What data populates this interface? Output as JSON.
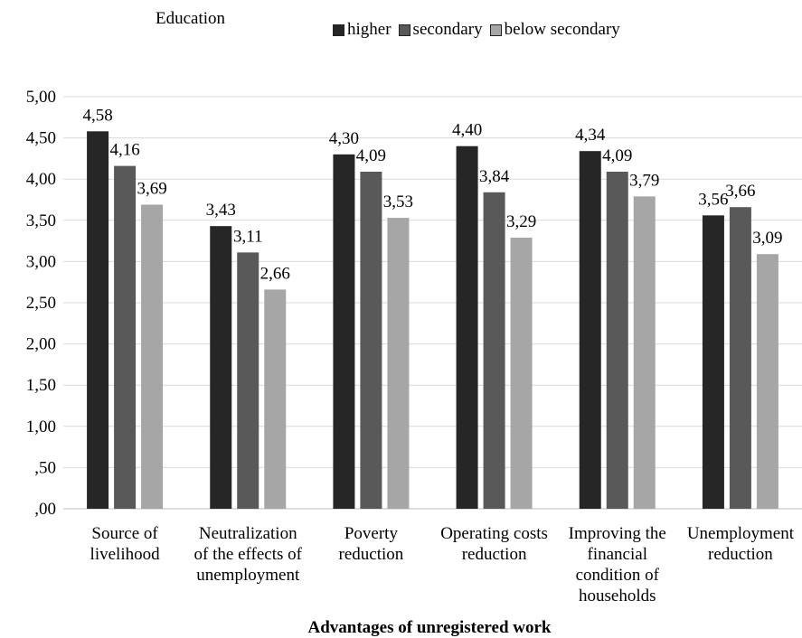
{
  "legend": {
    "title": "Education",
    "items": [
      "higher",
      "secondary",
      "below secondary"
    ]
  },
  "colors": [
    "#262626",
    "#595959",
    "#a6a6a6"
  ],
  "chart_data": {
    "type": "bar",
    "title": "",
    "xlabel": "Advantages of unregistered work",
    "ylabel": "",
    "ylim": [
      0,
      5
    ],
    "grid": true,
    "legend_position": "top",
    "yticks": [
      ",00",
      ",50",
      "1,00",
      "1,50",
      "2,00",
      "2,50",
      "3,00",
      "3,50",
      "4,00",
      "4,50",
      "5,00"
    ],
    "categories": [
      [
        "Source of",
        "livelihood"
      ],
      [
        "Neutralization",
        "of the effects of",
        "unemployment"
      ],
      [
        "Poverty",
        "reduction"
      ],
      [
        "Operating costs",
        "reduction"
      ],
      [
        "Improving the",
        "financial",
        "condition of",
        "households"
      ],
      [
        "Unemployment",
        "reduction"
      ]
    ],
    "series": [
      {
        "name": "higher",
        "values": [
          4.58,
          3.43,
          4.3,
          4.4,
          4.34,
          3.56
        ],
        "labels": [
          "4,58",
          "3,43",
          "4,30",
          "4,40",
          "4,34",
          "3,56"
        ]
      },
      {
        "name": "secondary",
        "values": [
          4.16,
          3.11,
          4.09,
          3.84,
          4.09,
          3.66
        ],
        "labels": [
          "4,16",
          "3,11",
          "4,09",
          "3,84",
          "4,09",
          "3,66"
        ]
      },
      {
        "name": "below secondary",
        "values": [
          3.69,
          2.66,
          3.53,
          3.29,
          3.79,
          3.09
        ],
        "labels": [
          "3,69",
          "2,66",
          "3,53",
          "3,29",
          "3,79",
          "3,09"
        ]
      }
    ]
  }
}
